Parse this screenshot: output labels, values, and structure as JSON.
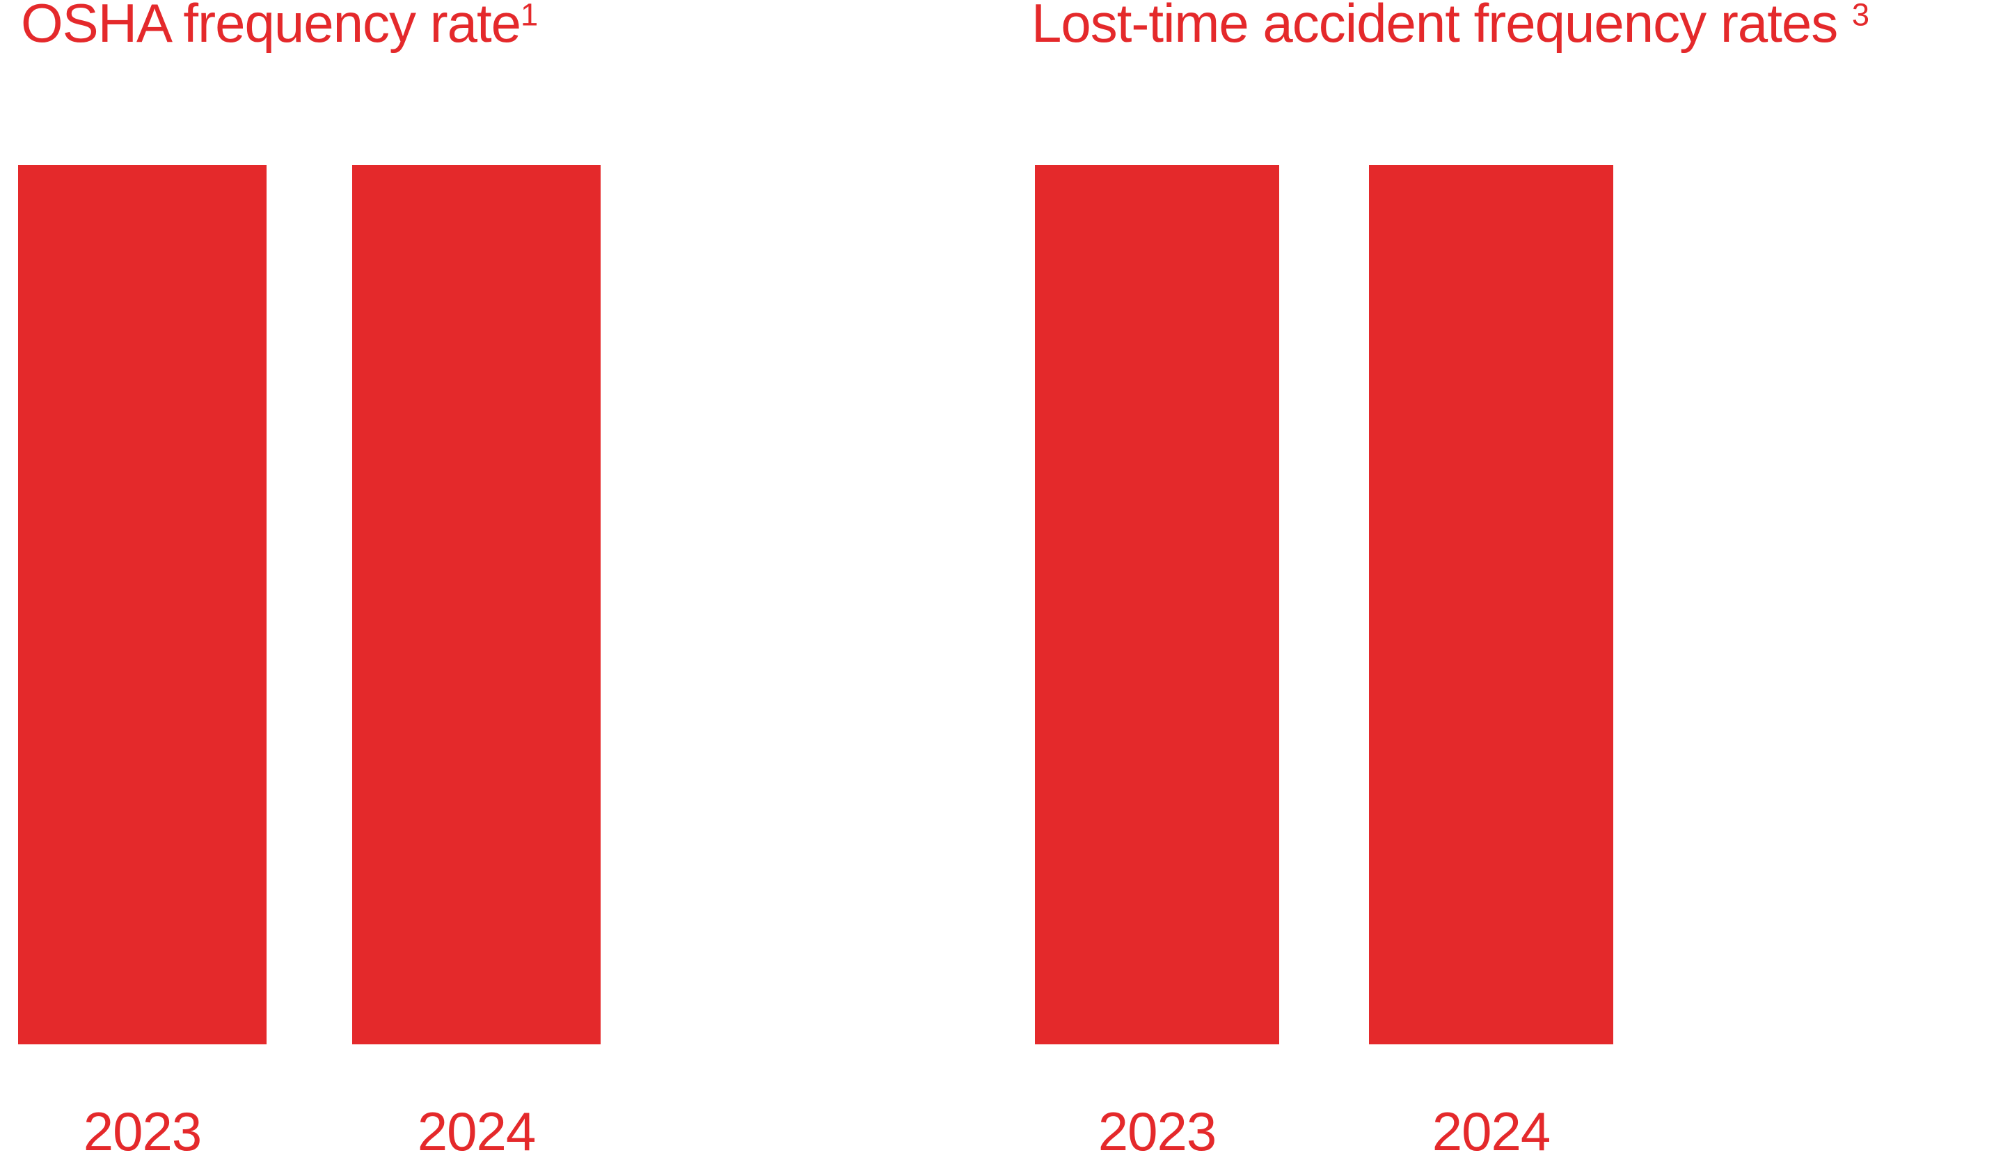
{
  "page": {
    "background": "#FFFFFF",
    "accent_red": "#E4292B"
  },
  "chart_data": [
    {
      "type": "bar",
      "title": "OSHA frequency rate",
      "footnote_marker": "1",
      "categories": [
        "2023",
        "2024"
      ],
      "values": [
        1,
        1
      ],
      "ylim": [
        0,
        1
      ],
      "bar_color": "#E4292B",
      "title_color": "#E4292B",
      "label_color": "#E4292B",
      "xlabel": "",
      "ylabel": "",
      "axes_visible": false,
      "gridlines": false,
      "value_labels_visible": false,
      "legend": "none",
      "note": "Both bars rendered at identical full height; no numeric values, axes or tick marks are shown in the image."
    },
    {
      "type": "bar",
      "title": "Lost-time accident frequency rates ",
      "footnote_marker": "3",
      "categories": [
        "2023",
        "2024"
      ],
      "values": [
        1,
        1
      ],
      "ylim": [
        0,
        1
      ],
      "bar_color": "#E4292B",
      "title_color": "#E4292B",
      "label_color": "#E4292B",
      "xlabel": "",
      "ylabel": "",
      "axes_visible": false,
      "gridlines": false,
      "value_labels_visible": false,
      "legend": "none",
      "note": "Both bars rendered at identical full height; no numeric values, axes or tick marks are shown in the image."
    }
  ]
}
